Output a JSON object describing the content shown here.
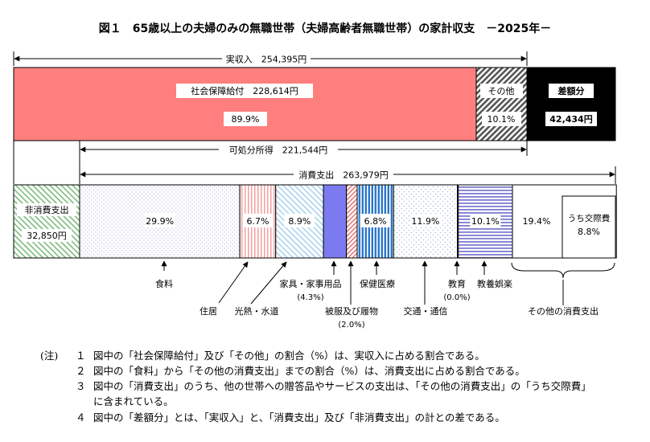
{
  "chart_data": {
    "type": "bar",
    "title": "図１　65歳以上の夫婦のみの無職世帯（夫婦高齢者無職世帯）の家計収支　－2025年－",
    "income_row": {
      "total_label": "実収入　254,395円",
      "segments": [
        {
          "label": "社会保障給付　228,614円",
          "value_label": "89.9%",
          "percent": 89.9,
          "fill": "#ff7f7f"
        },
        {
          "label": "その他",
          "value_label": "10.1%",
          "percent": 10.1,
          "fill": "hatch-dark"
        },
        {
          "label": "差額分",
          "value_label": "42,434円",
          "amount": 42434,
          "fill": "#000000"
        }
      ],
      "disposable_label": "可処分所得　221,544円"
    },
    "spending_row": {
      "total_label": "消費支出　263,979円",
      "non_consumption": {
        "label": "非消費支出",
        "value_label": "32,850円",
        "amount": 32850
      },
      "segments": [
        {
          "name": "食料",
          "value_label": "29.9%",
          "percent": 29.9
        },
        {
          "name": "住居",
          "value_label": "6.7%",
          "percent": 6.7
        },
        {
          "name": "光熱・水道",
          "value_label": "8.9%",
          "percent": 8.9
        },
        {
          "name": "家具・家事用品",
          "value_label": "(4.3%)",
          "percent": 4.3
        },
        {
          "name": "被服及び履物",
          "value_label": "(2.0%)",
          "percent": 2.0
        },
        {
          "name": "保健医療",
          "value_label": "6.8%",
          "percent": 6.8
        },
        {
          "name": "交通・通信",
          "value_label": "11.9%",
          "percent": 11.9
        },
        {
          "name": "教育",
          "value_label": "(0.0%)",
          "percent": 0.0
        },
        {
          "name": "教養娯楽",
          "value_label": "10.1%",
          "percent": 10.1
        },
        {
          "name": "その他の消費支出",
          "value_label": "19.4%",
          "percent": 19.4
        }
      ],
      "sub_segment": {
        "name": "うち交際費",
        "value_label": "8.8%",
        "percent": 8.8
      }
    }
  },
  "notes": {
    "label": "(注)",
    "items": [
      {
        "num": "１",
        "text": "図中の「社会保障給付」及び「その他」の割合（%）は、実収入に占める割合である。"
      },
      {
        "num": "２",
        "text": "図中の「食料」から「その他の消費支出」までの割合（%）は、消費支出に占める割合である。"
      },
      {
        "num": "３",
        "text": "図中の「消費支出」のうち、他の世帯への贈答品やサービスの支出は、「その他の消費支出」の「うち交際費」"
      },
      {
        "num": "",
        "text": "に含まれている。"
      },
      {
        "num": "４",
        "text": "図中の「差額分」とは、「実収入」と、「消費支出」及び「非消費支出」の計との差である。"
      }
    ]
  }
}
